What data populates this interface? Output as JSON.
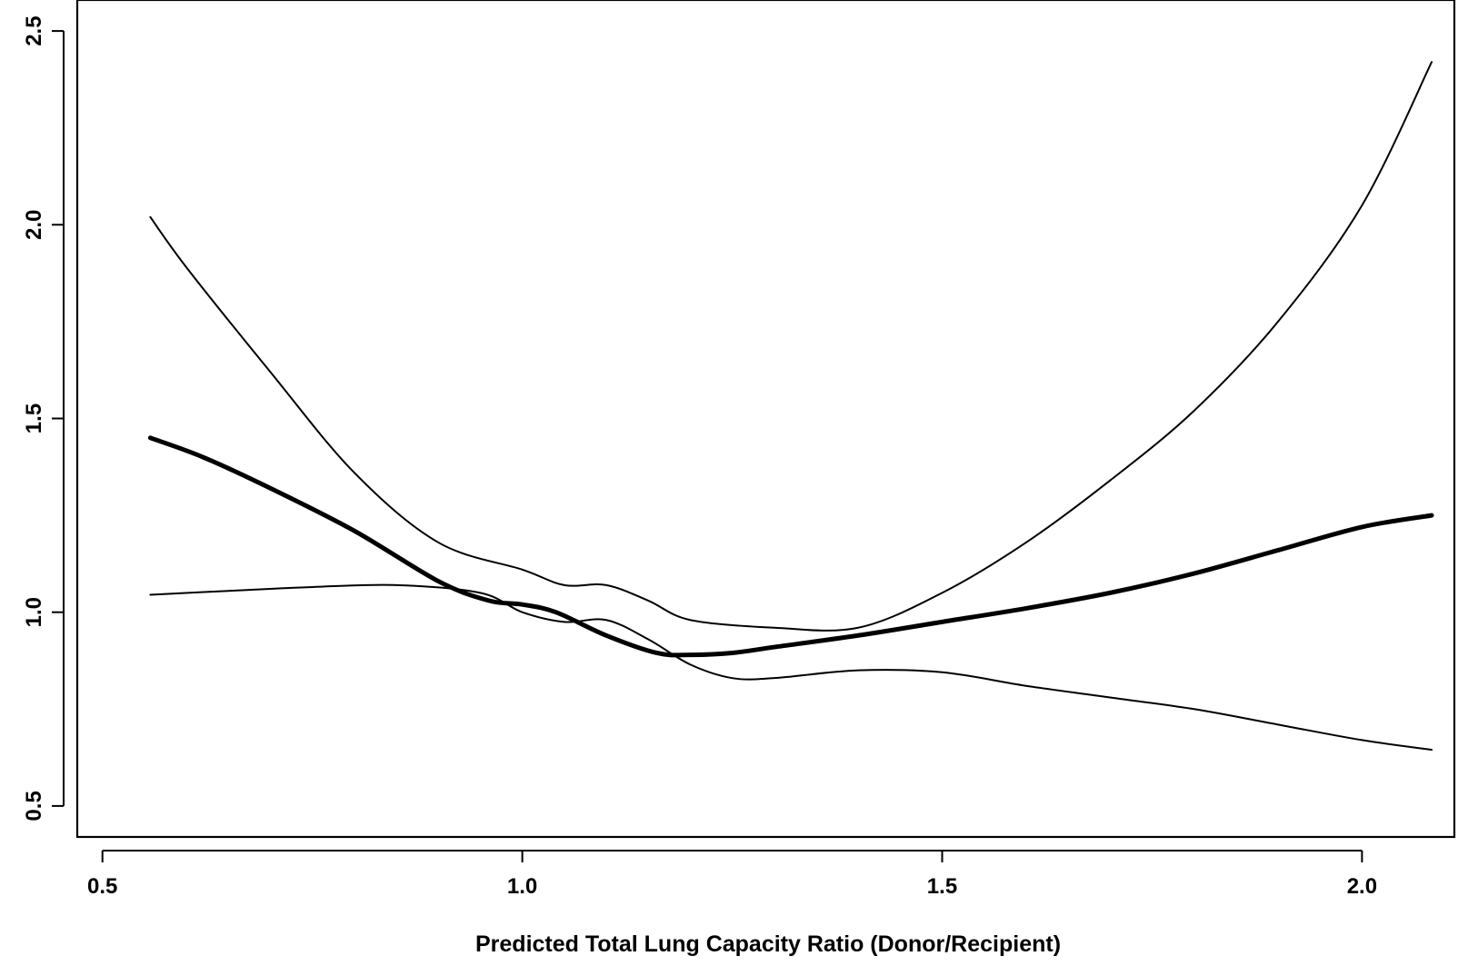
{
  "chart_data": {
    "type": "line",
    "title": "",
    "xlabel": "Predicted Total Lung Capacity Ratio (Donor/Recipient)",
    "ylabel": "",
    "xlim": [
      0.47,
      2.11
    ],
    "ylim": [
      0.42,
      2.58
    ],
    "x_ticks": [
      0.5,
      1.0,
      1.5,
      2.0
    ],
    "x_tick_labels": [
      "0.5",
      "1.0",
      "1.5",
      "2.0"
    ],
    "y_ticks": [
      0.5,
      1.0,
      1.5,
      2.0,
      2.5
    ],
    "y_tick_labels": [
      "0.5",
      "1.0",
      "1.5",
      "2.0",
      "2.5"
    ],
    "grid": false,
    "legend": "none",
    "color": "#000000",
    "series": [
      {
        "role": "estimate",
        "x": [
          0.557,
          0.62,
          0.7,
          0.8,
          0.9,
          0.96,
          1.0,
          1.04,
          1.1,
          1.16,
          1.2,
          1.25,
          1.3,
          1.4,
          1.5,
          1.6,
          1.7,
          1.8,
          1.9,
          2.0,
          2.083
        ],
        "y": [
          1.45,
          1.4,
          1.32,
          1.21,
          1.08,
          1.03,
          1.02,
          1.0,
          0.94,
          0.895,
          0.89,
          0.895,
          0.91,
          0.94,
          0.975,
          1.01,
          1.05,
          1.1,
          1.16,
          1.22,
          1.25
        ]
      },
      {
        "role": "upper-bound",
        "x": [
          0.557,
          0.6,
          0.7,
          0.8,
          0.9,
          1.0,
          1.05,
          1.1,
          1.15,
          1.2,
          1.3,
          1.4,
          1.5,
          1.6,
          1.7,
          1.8,
          1.9,
          2.0,
          2.083
        ],
        "y": [
          2.02,
          1.89,
          1.62,
          1.36,
          1.18,
          1.11,
          1.07,
          1.07,
          1.03,
          0.98,
          0.96,
          0.96,
          1.05,
          1.18,
          1.34,
          1.52,
          1.75,
          2.05,
          2.42
        ]
      },
      {
        "role": "lower-bound",
        "x": [
          0.557,
          0.65,
          0.75,
          0.85,
          0.95,
          1.0,
          1.05,
          1.1,
          1.15,
          1.2,
          1.25,
          1.3,
          1.4,
          1.5,
          1.6,
          1.7,
          1.8,
          1.9,
          2.0,
          2.083
        ],
        "y": [
          1.045,
          1.055,
          1.065,
          1.07,
          1.05,
          1.0,
          0.975,
          0.98,
          0.93,
          0.865,
          0.83,
          0.83,
          0.85,
          0.845,
          0.81,
          0.78,
          0.75,
          0.71,
          0.67,
          0.645
        ]
      }
    ]
  }
}
